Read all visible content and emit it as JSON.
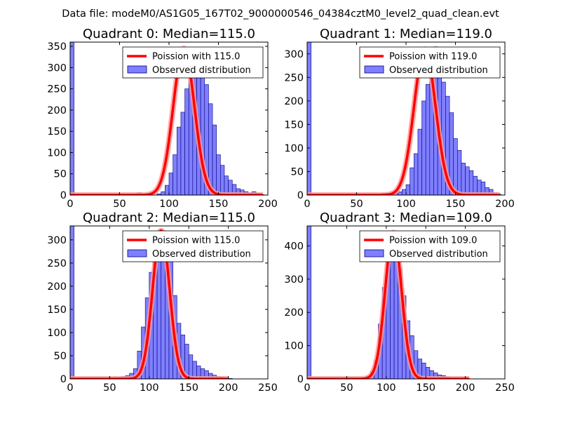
{
  "figure": {
    "suptitle": "Data file: modeM0/AS1G05_167T02_9000000546_04384cztM0_level2_quad_clean.evt"
  },
  "colors": {
    "bar_fill": "#7f7fff",
    "bar_edge": "#00007f",
    "poisson_line": "#ff0000",
    "poisson_glow": "#ff9999"
  },
  "chart_data": [
    {
      "type": "bar",
      "title": "Quadrant 0: Median=115.0",
      "xlim": [
        0,
        200
      ],
      "ylim": [
        0,
        360
      ],
      "xticks": [
        0,
        50,
        100,
        150,
        200
      ],
      "yticks": [
        0,
        50,
        100,
        150,
        200,
        250,
        300,
        350
      ],
      "bin_width": 4,
      "bin_start": 0,
      "legend": {
        "line_label": "Poission with 115.0",
        "bar_label": "Observed distribution",
        "position": "top-right"
      },
      "poisson_mean": 115,
      "poisson_peak": 345,
      "poisson_sigma": 10.7,
      "poisson_xrange": [
        0,
        195
      ],
      "values": [
        360,
        0,
        0,
        0,
        0,
        0,
        0,
        0,
        0,
        0,
        0,
        0,
        0,
        0,
        0,
        0,
        0,
        6,
        0,
        0,
        0,
        0,
        3,
        8,
        23,
        52,
        95,
        160,
        195,
        250,
        305,
        330,
        320,
        290,
        260,
        215,
        165,
        95,
        70,
        45,
        35,
        25,
        15,
        12,
        8,
        5,
        8,
        4,
        1
      ]
    },
    {
      "type": "bar",
      "title": "Quadrant 1: Median=119.0",
      "xlim": [
        0,
        200
      ],
      "ylim": [
        0,
        325
      ],
      "xticks": [
        0,
        50,
        100,
        150,
        200
      ],
      "yticks": [
        0,
        50,
        100,
        150,
        200,
        250,
        300
      ],
      "bin_width": 4,
      "bin_start": 0,
      "legend": {
        "line_label": "Poission with 119.0",
        "bar_label": "Observed distribution",
        "position": "top-right"
      },
      "poisson_mean": 119,
      "poisson_peak": 310,
      "poisson_sigma": 10.9,
      "poisson_xrange": [
        0,
        195
      ],
      "values": [
        325,
        0,
        0,
        0,
        0,
        0,
        0,
        0,
        0,
        0,
        0,
        0,
        0,
        0,
        0,
        0,
        0,
        0,
        0,
        4,
        4,
        0,
        4,
        7,
        12,
        22,
        58,
        88,
        140,
        200,
        235,
        260,
        315,
        290,
        240,
        210,
        175,
        120,
        95,
        68,
        60,
        52,
        40,
        32,
        28,
        16,
        12,
        5,
        2
      ]
    },
    {
      "type": "bar",
      "title": "Quadrant 2: Median=115.0",
      "xlim": [
        0,
        250
      ],
      "ylim": [
        0,
        330
      ],
      "xticks": [
        0,
        50,
        100,
        150,
        200,
        250
      ],
      "yticks": [
        0,
        50,
        100,
        150,
        200,
        250,
        300
      ],
      "bin_width": 5,
      "bin_start": 0,
      "legend": {
        "line_label": "Poission with 115.0",
        "bar_label": "Observed distribution",
        "position": "top-right"
      },
      "poisson_mean": 115,
      "poisson_peak": 320,
      "poisson_sigma": 10.7,
      "poisson_xrange": [
        0,
        200
      ],
      "values": [
        330,
        0,
        0,
        0,
        0,
        0,
        0,
        0,
        0,
        0,
        0,
        3,
        3,
        5,
        7,
        12,
        22,
        60,
        112,
        175,
        230,
        268,
        290,
        320,
        292,
        258,
        180,
        120,
        95,
        75,
        52,
        38,
        28,
        22,
        18,
        12,
        8,
        5,
        4,
        2,
        1
      ]
    },
    {
      "type": "bar",
      "title": "Quadrant 3: Median=109.0",
      "xlim": [
        0,
        250
      ],
      "ylim": [
        0,
        460
      ],
      "xticks": [
        0,
        50,
        100,
        150,
        200,
        250
      ],
      "yticks": [
        0,
        100,
        200,
        300,
        400
      ],
      "bin_width": 5,
      "bin_start": 0,
      "legend": {
        "line_label": "Poission with 109.0",
        "bar_label": "Observed distribution",
        "position": "top-right"
      },
      "poisson_mean": 109,
      "poisson_peak": 440,
      "poisson_sigma": 10.4,
      "poisson_xrange": [
        0,
        205
      ],
      "values": [
        460,
        0,
        0,
        0,
        0,
        0,
        0,
        0,
        0,
        0,
        0,
        0,
        0,
        2,
        4,
        8,
        22,
        55,
        165,
        275,
        395,
        440,
        410,
        330,
        250,
        175,
        130,
        85,
        60,
        48,
        35,
        25,
        18,
        12,
        10,
        5,
        3,
        2,
        1,
        1,
        1
      ]
    }
  ]
}
